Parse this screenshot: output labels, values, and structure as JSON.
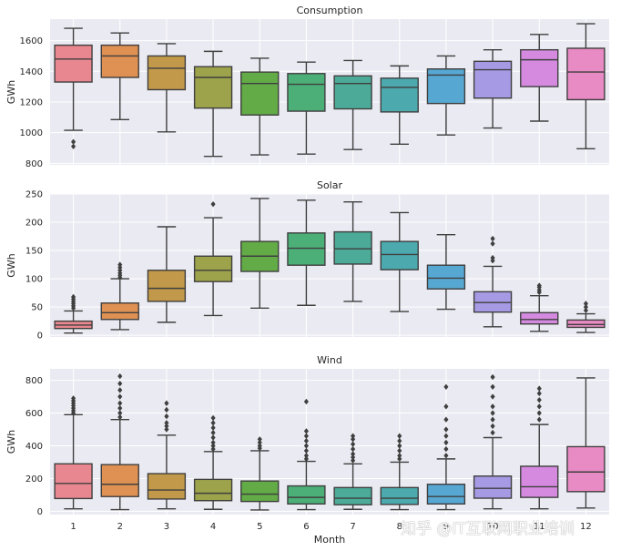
{
  "figure": {
    "xlabel": "Month",
    "watermark": "知乎 @IT互联网职业培训"
  },
  "chart_data": [
    {
      "type": "box",
      "title": "Consumption",
      "ylabel": "GWh",
      "ylim": [
        790,
        1740
      ],
      "yticks": [
        800,
        1000,
        1200,
        1400,
        1600
      ],
      "categories": [
        "1",
        "2",
        "3",
        "4",
        "5",
        "6",
        "7",
        "8",
        "9",
        "10",
        "11",
        "12"
      ],
      "boxes": [
        {
          "min": 1015,
          "q1": 1330,
          "median": 1480,
          "q3": 1570,
          "max": 1680,
          "outliers": [
            940,
            910
          ]
        },
        {
          "min": 1085,
          "q1": 1360,
          "median": 1500,
          "q3": 1570,
          "max": 1650,
          "outliers": []
        },
        {
          "min": 1005,
          "q1": 1280,
          "median": 1420,
          "q3": 1500,
          "max": 1580,
          "outliers": []
        },
        {
          "min": 845,
          "q1": 1160,
          "median": 1360,
          "q3": 1430,
          "max": 1530,
          "outliers": []
        },
        {
          "min": 855,
          "q1": 1115,
          "median": 1320,
          "q3": 1395,
          "max": 1485,
          "outliers": []
        },
        {
          "min": 860,
          "q1": 1140,
          "median": 1315,
          "q3": 1385,
          "max": 1460,
          "outliers": []
        },
        {
          "min": 890,
          "q1": 1155,
          "median": 1320,
          "q3": 1370,
          "max": 1470,
          "outliers": []
        },
        {
          "min": 925,
          "q1": 1135,
          "median": 1295,
          "q3": 1355,
          "max": 1435,
          "outliers": []
        },
        {
          "min": 985,
          "q1": 1190,
          "median": 1375,
          "q3": 1415,
          "max": 1500,
          "outliers": []
        },
        {
          "min": 1030,
          "q1": 1225,
          "median": 1410,
          "q3": 1465,
          "max": 1540,
          "outliers": []
        },
        {
          "min": 1075,
          "q1": 1300,
          "median": 1475,
          "q3": 1540,
          "max": 1640,
          "outliers": []
        },
        {
          "min": 895,
          "q1": 1215,
          "median": 1395,
          "q3": 1550,
          "max": 1710,
          "outliers": []
        }
      ]
    },
    {
      "type": "box",
      "title": "Solar",
      "ylabel": "GWh",
      "ylim": [
        -3,
        250
      ],
      "yticks": [
        0,
        50,
        100,
        150,
        200,
        250
      ],
      "categories": [
        "1",
        "2",
        "3",
        "4",
        "5",
        "6",
        "7",
        "8",
        "9",
        "10",
        "11",
        "12"
      ],
      "boxes": [
        {
          "min": 4,
          "q1": 12,
          "median": 18,
          "q3": 25,
          "max": 43,
          "outliers": [
            48,
            52,
            56,
            60,
            64,
            68
          ]
        },
        {
          "min": 10,
          "q1": 28,
          "median": 40,
          "q3": 57,
          "max": 100,
          "outliers": [
            102,
            106,
            110,
            115,
            120,
            125
          ]
        },
        {
          "min": 23,
          "q1": 60,
          "median": 83,
          "q3": 115,
          "max": 192,
          "outliers": []
        },
        {
          "min": 35,
          "q1": 95,
          "median": 115,
          "q3": 140,
          "max": 208,
          "outliers": [
            232
          ]
        },
        {
          "min": 48,
          "q1": 113,
          "median": 140,
          "q3": 166,
          "max": 242,
          "outliers": []
        },
        {
          "min": 53,
          "q1": 124,
          "median": 154,
          "q3": 181,
          "max": 239,
          "outliers": []
        },
        {
          "min": 60,
          "q1": 126,
          "median": 153,
          "q3": 183,
          "max": 236,
          "outliers": []
        },
        {
          "min": 42,
          "q1": 116,
          "median": 143,
          "q3": 166,
          "max": 217,
          "outliers": []
        },
        {
          "min": 46,
          "q1": 82,
          "median": 101,
          "q3": 124,
          "max": 178,
          "outliers": []
        },
        {
          "min": 15,
          "q1": 41,
          "median": 58,
          "q3": 77,
          "max": 122,
          "outliers": [
            132,
            137,
            162,
            171
          ]
        },
        {
          "min": 7,
          "q1": 20,
          "median": 28,
          "q3": 40,
          "max": 70,
          "outliers": [
            76,
            80,
            85,
            88
          ]
        },
        {
          "min": 5,
          "q1": 14,
          "median": 19,
          "q3": 27,
          "max": 38,
          "outliers": [
            44,
            50,
            56
          ]
        }
      ]
    },
    {
      "type": "box",
      "title": "Wind",
      "ylabel": "GWh",
      "ylim": [
        -20,
        870
      ],
      "yticks": [
        0,
        200,
        400,
        600,
        800
      ],
      "categories": [
        "1",
        "2",
        "3",
        "4",
        "5",
        "6",
        "7",
        "8",
        "9",
        "10",
        "11",
        "12"
      ],
      "boxes": [
        {
          "min": 15,
          "q1": 78,
          "median": 170,
          "q3": 290,
          "max": 590,
          "outliers": [
            600,
            615,
            630,
            645,
            660,
            675,
            690
          ]
        },
        {
          "min": 10,
          "q1": 90,
          "median": 165,
          "q3": 285,
          "max": 560,
          "outliers": [
            575,
            600,
            630,
            660,
            700,
            740,
            780,
            825
          ]
        },
        {
          "min": 15,
          "q1": 75,
          "median": 130,
          "q3": 230,
          "max": 465,
          "outliers": [
            500,
            520,
            540,
            580,
            620,
            660
          ]
        },
        {
          "min": 12,
          "q1": 65,
          "median": 110,
          "q3": 195,
          "max": 365,
          "outliers": [
            380,
            400,
            420,
            450,
            480,
            510,
            540,
            570
          ]
        },
        {
          "min": 8,
          "q1": 60,
          "median": 105,
          "q3": 185,
          "max": 370,
          "outliers": [
            385,
            400,
            420,
            440
          ]
        },
        {
          "min": 10,
          "q1": 45,
          "median": 85,
          "q3": 155,
          "max": 305,
          "outliers": [
            320,
            340,
            370,
            400,
            430,
            460,
            490,
            670
          ]
        },
        {
          "min": 12,
          "q1": 40,
          "median": 80,
          "q3": 145,
          "max": 290,
          "outliers": [
            310,
            330,
            350,
            380,
            410,
            440,
            460
          ]
        },
        {
          "min": 10,
          "q1": 42,
          "median": 80,
          "q3": 145,
          "max": 300,
          "outliers": [
            320,
            340,
            370,
            400,
            430,
            460
          ]
        },
        {
          "min": 10,
          "q1": 45,
          "median": 90,
          "q3": 165,
          "max": 320,
          "outliers": [
            340,
            380,
            420,
            460,
            500,
            560,
            640,
            760
          ]
        },
        {
          "min": 15,
          "q1": 80,
          "median": 140,
          "q3": 215,
          "max": 450,
          "outliers": [
            480,
            520,
            560,
            600,
            640,
            700,
            760,
            820
          ]
        },
        {
          "min": 15,
          "q1": 85,
          "median": 150,
          "q3": 275,
          "max": 530,
          "outliers": [
            560,
            600,
            640,
            680,
            720,
            750
          ]
        },
        {
          "min": 20,
          "q1": 120,
          "median": 240,
          "q3": 395,
          "max": 815,
          "outliers": []
        }
      ]
    }
  ],
  "colors": {
    "background": "#eaeaf2",
    "grid": "#ffffff",
    "line": "#3f3f3f",
    "boxes": [
      "#e8878f",
      "#df9153",
      "#c2994a",
      "#9da34a",
      "#62ab47",
      "#4caf78",
      "#4cab98",
      "#4ca9ad",
      "#57a7d3",
      "#a69ae5",
      "#d58ae0",
      "#e88ac3"
    ]
  }
}
